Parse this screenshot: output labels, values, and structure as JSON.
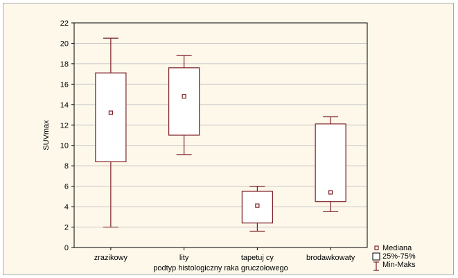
{
  "chart_data": {
    "type": "box",
    "xlabel": "podtyp histologiczny raka gruczołowego",
    "ylabel": "SUVmax",
    "ylim": [
      0,
      22
    ],
    "yticks": [
      0,
      2,
      4,
      6,
      8,
      10,
      12,
      14,
      16,
      18,
      20,
      22
    ],
    "grid": true,
    "legend_position": "bottom-right",
    "categories": [
      "zrazikowy",
      "lity",
      "tapetuj cy",
      "brodawkowaty"
    ],
    "boxes": [
      {
        "category": "zrazikowy",
        "min": 2.0,
        "q1": 8.4,
        "median": 13.2,
        "q3": 17.1,
        "max": 20.5
      },
      {
        "category": "lity",
        "min": 9.1,
        "q1": 11.0,
        "median": 14.8,
        "q3": 17.6,
        "max": 18.8
      },
      {
        "category": "tapetuj cy",
        "min": 1.6,
        "q1": 2.4,
        "median": 4.1,
        "q3": 5.5,
        "max": 6.0
      },
      {
        "category": "brodawkowaty",
        "min": 3.5,
        "q1": 4.5,
        "median": 5.4,
        "q3": 12.1,
        "max": 12.8
      }
    ],
    "legend": [
      "Mediana",
      "25%-75%",
      "Min-Maks"
    ],
    "colors": {
      "stroke": "#7b1c24",
      "box_fill": "#ffffff",
      "panel": "#fdf8ea",
      "grid": "#c8c8c8"
    }
  }
}
